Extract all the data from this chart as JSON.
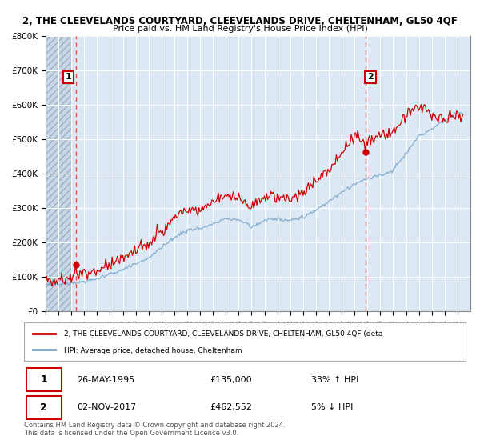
{
  "title1": "2, THE CLEEVELANDS COURTYARD, CLEEVELANDS DRIVE, CHELTENHAM, GL50 4QF",
  "title2": "Price paid vs. HM Land Registry's House Price Index (HPI)",
  "background_color": "#ffffff",
  "plot_bg_color": "#dce9f5",
  "hatch_color": "#c0cdd8",
  "grid_color": "#ffffff",
  "sale1_x": 1995.37,
  "sale1_y": 135000,
  "sale2_x": 2017.84,
  "sale2_y": 462552,
  "legend_line1": "2, THE CLEEVELANDS COURTYARD, CLEEVELANDS DRIVE, CHELTENHAM, GL50 4QF (deta",
  "legend_line2": "HPI: Average price, detached house, Cheltenham",
  "annotation1_date": "26-MAY-1995",
  "annotation1_price": "£135,000",
  "annotation1_hpi": "33% ↑ HPI",
  "annotation2_date": "02-NOV-2017",
  "annotation2_price": "£462,552",
  "annotation2_hpi": "5% ↓ HPI",
  "footer": "Contains HM Land Registry data © Crown copyright and database right 2024.\nThis data is licensed under the Open Government Licence v3.0.",
  "red_line_color": "#cc0000",
  "blue_line_color": "#7ba7cc",
  "dashed_line_color": "#dd4444",
  "marker_color": "#cc0000",
  "ylim": [
    0,
    800000
  ],
  "yticks": [
    0,
    100000,
    200000,
    300000,
    400000,
    500000,
    600000,
    700000,
    800000
  ],
  "xmin": 1993,
  "xmax": 2026,
  "hatch_xend": 1995.0
}
